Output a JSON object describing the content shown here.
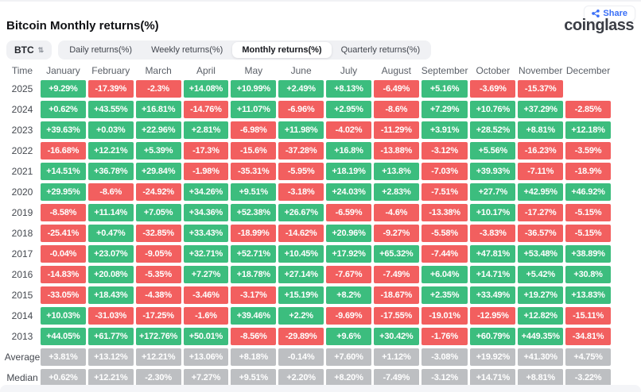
{
  "header": {
    "title": "Bitcoin Monthly returns(%)",
    "share_label": "Share",
    "logo": "coinglass",
    "symbol_select": {
      "value": "BTC",
      "sort_icon": "sort-arrows-icon"
    },
    "tabs": [
      {
        "label": "Daily returns(%)",
        "active": false
      },
      {
        "label": "Weekly returns(%)",
        "active": false
      },
      {
        "label": "Monthly returns(%)",
        "active": true
      },
      {
        "label": "Quarterly returns(%)",
        "active": false
      }
    ]
  },
  "colors": {
    "positive": "#3cbd7e",
    "negative": "#f25f5f",
    "neutral": "#bdbfc2",
    "share_accent": "#3a6ff7"
  },
  "chart_data": {
    "type": "heatmap",
    "title": "Bitcoin Monthly returns(%)",
    "row_header": "Time",
    "columns": [
      "January",
      "February",
      "March",
      "April",
      "May",
      "June",
      "July",
      "August",
      "September",
      "October",
      "November",
      "December"
    ],
    "rows": [
      {
        "label": "2025",
        "kind": "year",
        "values": [
          "+9.29%",
          "-17.39%",
          "-2.3%",
          "+14.08%",
          "+10.99%",
          "+2.49%",
          "+8.13%",
          "-6.49%",
          "+5.16%",
          "-3.69%",
          "-15.37%",
          ""
        ]
      },
      {
        "label": "2024",
        "kind": "year",
        "values": [
          "+0.62%",
          "+43.55%",
          "+16.81%",
          "-14.76%",
          "+11.07%",
          "-6.96%",
          "+2.95%",
          "-8.6%",
          "+7.29%",
          "+10.76%",
          "+37.29%",
          "-2.85%"
        ]
      },
      {
        "label": "2023",
        "kind": "year",
        "values": [
          "+39.63%",
          "+0.03%",
          "+22.96%",
          "+2.81%",
          "-6.98%",
          "+11.98%",
          "-4.02%",
          "-11.29%",
          "+3.91%",
          "+28.52%",
          "+8.81%",
          "+12.18%"
        ]
      },
      {
        "label": "2022",
        "kind": "year",
        "values": [
          "-16.68%",
          "+12.21%",
          "+5.39%",
          "-17.3%",
          "-15.6%",
          "-37.28%",
          "+16.8%",
          "-13.88%",
          "-3.12%",
          "+5.56%",
          "-16.23%",
          "-3.59%"
        ]
      },
      {
        "label": "2021",
        "kind": "year",
        "values": [
          "+14.51%",
          "+36.78%",
          "+29.84%",
          "-1.98%",
          "-35.31%",
          "-5.95%",
          "+18.19%",
          "+13.8%",
          "-7.03%",
          "+39.93%",
          "-7.11%",
          "-18.9%"
        ]
      },
      {
        "label": "2020",
        "kind": "year",
        "values": [
          "+29.95%",
          "-8.6%",
          "-24.92%",
          "+34.26%",
          "+9.51%",
          "-3.18%",
          "+24.03%",
          "+2.83%",
          "-7.51%",
          "+27.7%",
          "+42.95%",
          "+46.92%"
        ]
      },
      {
        "label": "2019",
        "kind": "year",
        "values": [
          "-8.58%",
          "+11.14%",
          "+7.05%",
          "+34.36%",
          "+52.38%",
          "+26.67%",
          "-6.59%",
          "-4.6%",
          "-13.38%",
          "+10.17%",
          "-17.27%",
          "-5.15%"
        ]
      },
      {
        "label": "2018",
        "kind": "year",
        "values": [
          "-25.41%",
          "+0.47%",
          "-32.85%",
          "+33.43%",
          "-18.99%",
          "-14.62%",
          "+20.96%",
          "-9.27%",
          "-5.58%",
          "-3.83%",
          "-36.57%",
          "-5.15%"
        ]
      },
      {
        "label": "2017",
        "kind": "year",
        "values": [
          "-0.04%",
          "+23.07%",
          "-9.05%",
          "+32.71%",
          "+52.71%",
          "+10.45%",
          "+17.92%",
          "+65.32%",
          "-7.44%",
          "+47.81%",
          "+53.48%",
          "+38.89%"
        ]
      },
      {
        "label": "2016",
        "kind": "year",
        "values": [
          "-14.83%",
          "+20.08%",
          "-5.35%",
          "+7.27%",
          "+18.78%",
          "+27.14%",
          "-7.67%",
          "-7.49%",
          "+6.04%",
          "+14.71%",
          "+5.42%",
          "+30.8%"
        ]
      },
      {
        "label": "2015",
        "kind": "year",
        "values": [
          "-33.05%",
          "+18.43%",
          "-4.38%",
          "-3.46%",
          "-3.17%",
          "+15.19%",
          "+8.2%",
          "-18.67%",
          "+2.35%",
          "+33.49%",
          "+19.27%",
          "+13.83%"
        ]
      },
      {
        "label": "2014",
        "kind": "year",
        "values": [
          "+10.03%",
          "-31.03%",
          "-17.25%",
          "-1.6%",
          "+39.46%",
          "+2.2%",
          "-9.69%",
          "-17.55%",
          "-19.01%",
          "-12.95%",
          "+12.82%",
          "-15.11%"
        ]
      },
      {
        "label": "2013",
        "kind": "year",
        "values": [
          "+44.05%",
          "+61.77%",
          "+172.76%",
          "+50.01%",
          "-8.56%",
          "-29.89%",
          "+9.6%",
          "+30.42%",
          "-1.76%",
          "+60.79%",
          "+449.35%",
          "-34.81%"
        ]
      },
      {
        "label": "Average",
        "kind": "summary",
        "values": [
          "+3.81%",
          "+13.12%",
          "+12.21%",
          "+13.06%",
          "+8.18%",
          "-0.14%",
          "+7.60%",
          "+1.12%",
          "-3.08%",
          "+19.92%",
          "+41.30%",
          "+4.75%"
        ]
      },
      {
        "label": "Median",
        "kind": "summary",
        "values": [
          "+0.62%",
          "+12.21%",
          "-2.30%",
          "+7.27%",
          "+9.51%",
          "+2.20%",
          "+8.20%",
          "-7.49%",
          "-3.12%",
          "+14.71%",
          "+8.81%",
          "-3.22%"
        ]
      }
    ]
  }
}
